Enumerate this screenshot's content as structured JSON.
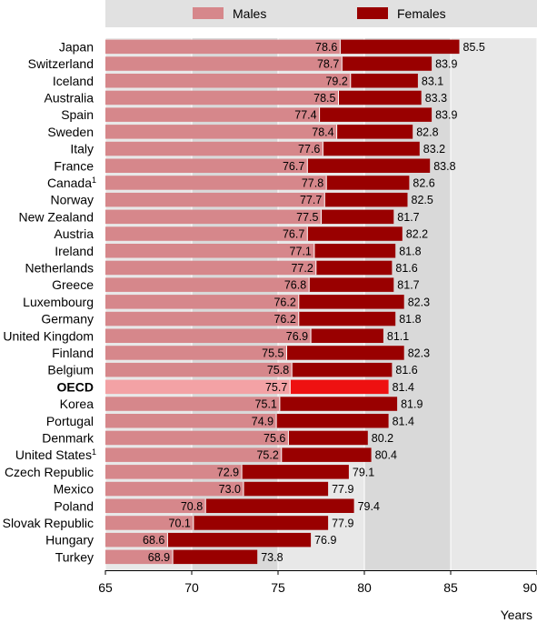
{
  "chart_data": {
    "type": "bar",
    "orientation": "horizontal",
    "xlabel": "Years",
    "xlim": [
      65,
      90
    ],
    "xticks": [
      65,
      70,
      75,
      80,
      85,
      90
    ],
    "grid": true,
    "legend_position": "top",
    "highlight_category": "OECD",
    "series": [
      {
        "name": "Males",
        "color": "#d6878b",
        "highlight_color": "#f3a2a5"
      },
      {
        "name": "Females",
        "color": "#990000",
        "highlight_color": "#ee1111"
      }
    ],
    "categories": [
      {
        "name": "Japan",
        "sup": "",
        "males": 78.6,
        "females": 85.5
      },
      {
        "name": "Switzerland",
        "sup": "",
        "males": 78.7,
        "females": 83.9
      },
      {
        "name": "Iceland",
        "sup": "",
        "males": 79.2,
        "females": 83.1
      },
      {
        "name": "Australia",
        "sup": "",
        "males": 78.5,
        "females": 83.3
      },
      {
        "name": "Spain",
        "sup": "",
        "males": 77.4,
        "females": 83.9
      },
      {
        "name": "Sweden",
        "sup": "",
        "males": 78.4,
        "females": 82.8
      },
      {
        "name": "Italy",
        "sup": "",
        "males": 77.6,
        "females": 83.2
      },
      {
        "name": "France",
        "sup": "",
        "males": 76.7,
        "females": 83.8
      },
      {
        "name": "Canada",
        "sup": "1",
        "males": 77.8,
        "females": 82.6
      },
      {
        "name": "Norway",
        "sup": "",
        "males": 77.7,
        "females": 82.5
      },
      {
        "name": "New Zealand",
        "sup": "",
        "males": 77.5,
        "females": 81.7
      },
      {
        "name": "Austria",
        "sup": "",
        "males": 76.7,
        "females": 82.2
      },
      {
        "name": "Ireland",
        "sup": "",
        "males": 77.1,
        "females": 81.8
      },
      {
        "name": "Netherlands",
        "sup": "",
        "males": 77.2,
        "females": 81.6
      },
      {
        "name": "Greece",
        "sup": "",
        "males": 76.8,
        "females": 81.7
      },
      {
        "name": "Luxembourg",
        "sup": "",
        "males": 76.2,
        "females": 82.3
      },
      {
        "name": "Germany",
        "sup": "",
        "males": 76.2,
        "females": 81.8
      },
      {
        "name": "United Kingdom",
        "sup": "",
        "males": 76.9,
        "females": 81.1
      },
      {
        "name": "Finland",
        "sup": "",
        "males": 75.5,
        "females": 82.3
      },
      {
        "name": "Belgium",
        "sup": "",
        "males": 75.8,
        "females": 81.6
      },
      {
        "name": "OECD",
        "sup": "",
        "males": 75.7,
        "females": 81.4
      },
      {
        "name": "Korea",
        "sup": "",
        "males": 75.1,
        "females": 81.9
      },
      {
        "name": "Portugal",
        "sup": "",
        "males": 74.9,
        "females": 81.4
      },
      {
        "name": "Denmark",
        "sup": "",
        "males": 75.6,
        "females": 80.2
      },
      {
        "name": "United States",
        "sup": "1",
        "males": 75.2,
        "females": 80.4
      },
      {
        "name": "Czech Republic",
        "sup": "",
        "males": 72.9,
        "females": 79.1
      },
      {
        "name": "Mexico",
        "sup": "",
        "males": 73.0,
        "females": 77.9
      },
      {
        "name": "Poland",
        "sup": "",
        "males": 70.8,
        "females": 79.4
      },
      {
        "name": "Slovak Republic",
        "sup": "",
        "males": 70.1,
        "females": 77.9
      },
      {
        "name": "Hungary",
        "sup": "",
        "males": 68.6,
        "females": 76.9
      },
      {
        "name": "Turkey",
        "sup": "",
        "males": 68.9,
        "females": 73.8
      }
    ]
  }
}
